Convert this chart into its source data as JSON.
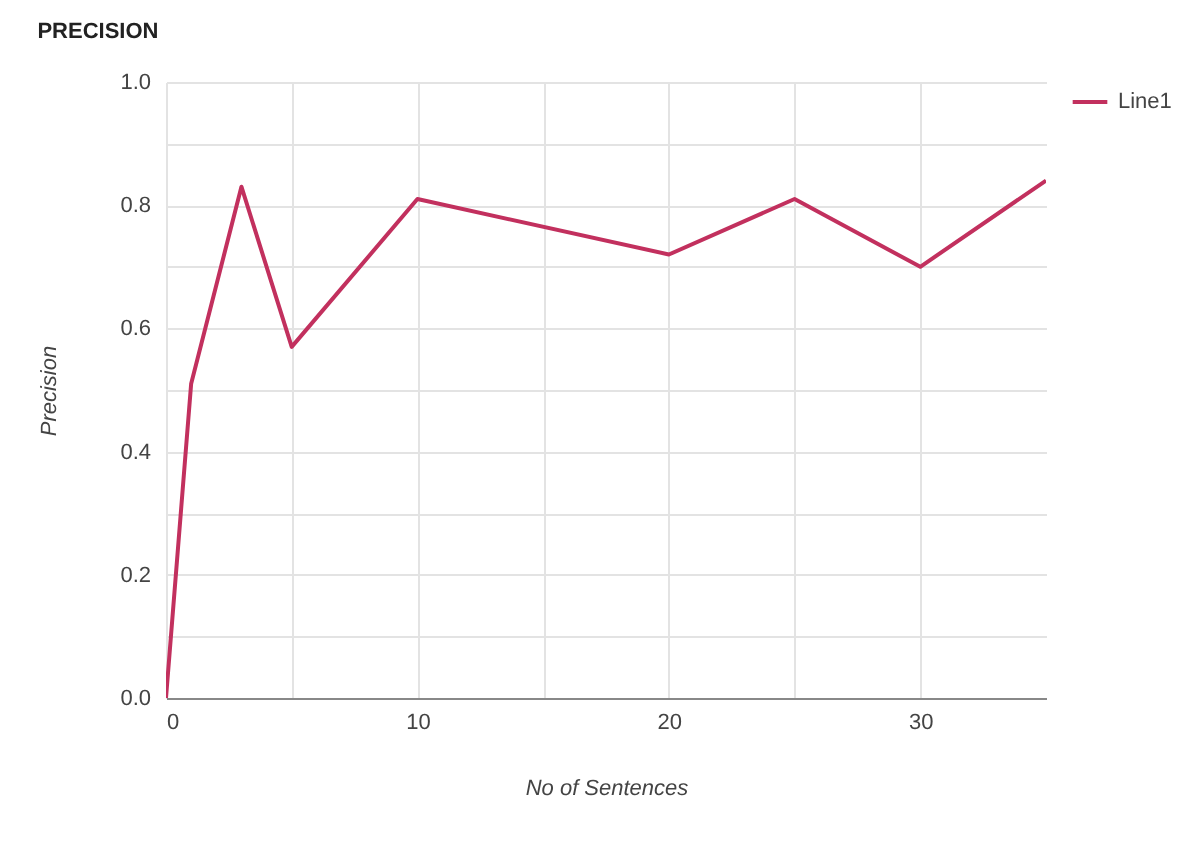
{
  "chart_data": {
    "type": "line",
    "title": "PRECISION",
    "xlabel": "No of Sentences",
    "ylabel": "Precision",
    "x": [
      0,
      1,
      3,
      5,
      10,
      20,
      25,
      30,
      35
    ],
    "series": [
      {
        "name": "Line1",
        "color": "#c2305e",
        "values": [
          0,
          0.51,
          0.83,
          0.57,
          0.81,
          0.72,
          0.81,
          0.7,
          0.84
        ]
      }
    ],
    "xlim": [
      0,
      35
    ],
    "xticks": [
      0,
      {
        "value": 5,
        "label": null
      },
      10,
      {
        "value": 15,
        "label": null
      },
      20,
      {
        "value": 25,
        "label": null
      },
      30
    ],
    "ylim": [
      0,
      1
    ],
    "yticks": [
      {
        "value": 0,
        "label": "0.0"
      },
      {
        "value": 0.1,
        "label": null
      },
      0.2,
      {
        "value": 0.3,
        "label": null
      },
      0.4,
      {
        "value": 0.5,
        "label": null
      },
      0.6,
      {
        "value": 0.7,
        "label": null
      },
      0.8,
      {
        "value": 0.9,
        "label": null
      },
      {
        "value": 1,
        "label": "1.0"
      }
    ],
    "grid": true,
    "legend": "top right",
    "marker": "none",
    "line_style": "solid"
  }
}
